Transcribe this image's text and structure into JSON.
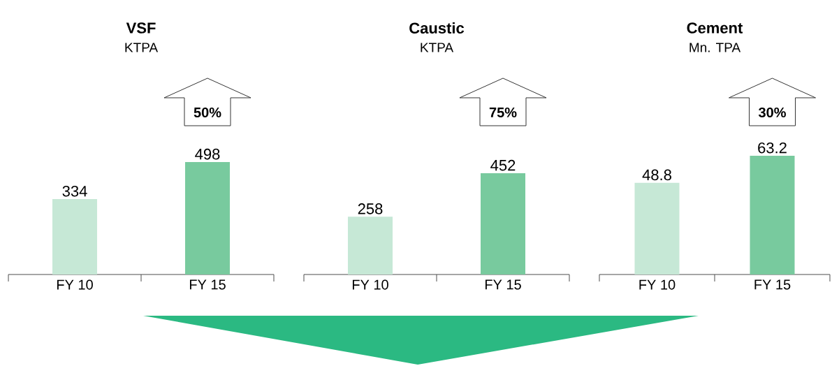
{
  "chart_data": [
    {
      "type": "bar",
      "title": "VSF",
      "subtitle": "KTPA",
      "categories": [
        "FY 10",
        "FY 15"
      ],
      "values": [
        334,
        498
      ],
      "colors": [
        "#c6e8d6",
        "#78ca9e"
      ],
      "data_labels": true,
      "annotations": [
        "50%"
      ]
    },
    {
      "type": "bar",
      "title": "Caustic",
      "subtitle": "KTPA",
      "categories": [
        "FY 10",
        "FY 15"
      ],
      "values": [
        258,
        452
      ],
      "colors": [
        "#c6e8d6",
        "#78ca9e"
      ],
      "data_labels": true,
      "annotations": [
        "75%"
      ]
    },
    {
      "type": "bar",
      "title": "Cement",
      "subtitle": "Mn. TPA",
      "categories": [
        "FY 10",
        "FY 15"
      ],
      "values": [
        48.8,
        63.2
      ],
      "colors": [
        "#c6e8d6",
        "#78ca9e"
      ],
      "data_labels": true,
      "annotations": [
        "30%"
      ]
    }
  ]
}
